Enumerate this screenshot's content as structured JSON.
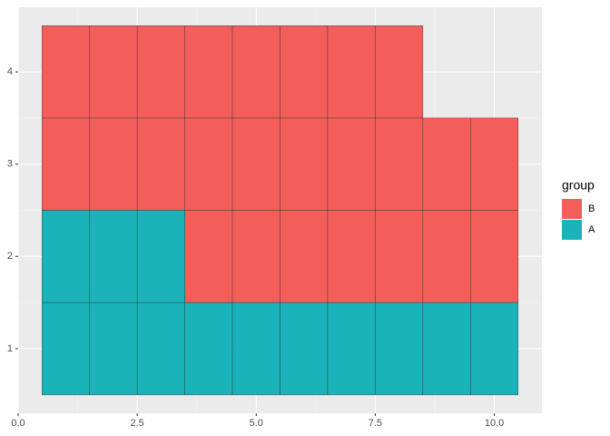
{
  "chart_data": {
    "type": "tile",
    "legend_title": "group",
    "legend_position": "right",
    "grid": true,
    "xlim": [
      0,
      11
    ],
    "ylim": [
      0.3,
      4.7
    ],
    "xticks": [
      {
        "value": 0,
        "label": "0.0"
      },
      2.5,
      {
        "value": 5,
        "label": "5.0"
      },
      7.5,
      {
        "value": 10,
        "label": "10.0"
      }
    ],
    "yticks": [
      1,
      2,
      3,
      4
    ],
    "series": [
      {
        "name": "B",
        "color": "#F35E5A",
        "x": [
          4,
          5,
          6,
          7,
          8,
          9,
          10,
          1,
          2,
          3,
          4,
          5,
          6,
          7,
          8,
          9,
          10,
          1,
          2,
          3,
          4,
          5,
          6,
          7,
          8
        ],
        "values": [
          2,
          2,
          2,
          2,
          2,
          2,
          2,
          3,
          3,
          3,
          3,
          3,
          3,
          3,
          3,
          3,
          3,
          4,
          4,
          4,
          4,
          4,
          4,
          4,
          4
        ]
      },
      {
        "name": "A",
        "color": "#1AB3B9",
        "x": [
          1,
          2,
          3,
          4,
          5,
          6,
          7,
          8,
          9,
          10,
          1,
          2,
          3
        ],
        "values": [
          1,
          1,
          1,
          1,
          1,
          1,
          1,
          1,
          1,
          1,
          2,
          2,
          2
        ]
      }
    ]
  }
}
